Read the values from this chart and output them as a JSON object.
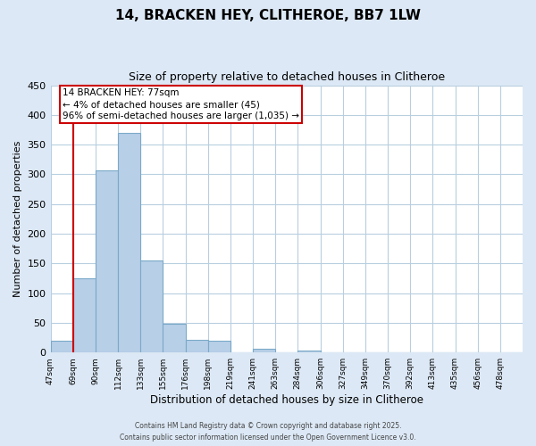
{
  "title": "14, BRACKEN HEY, CLITHEROE, BB7 1LW",
  "subtitle": "Size of property relative to detached houses in Clitheroe",
  "xlabel": "Distribution of detached houses by size in Clitheroe",
  "ylabel": "Number of detached properties",
  "bin_labels": [
    "47sqm",
    "69sqm",
    "90sqm",
    "112sqm",
    "133sqm",
    "155sqm",
    "176sqm",
    "198sqm",
    "219sqm",
    "241sqm",
    "263sqm",
    "284sqm",
    "306sqm",
    "327sqm",
    "349sqm",
    "370sqm",
    "392sqm",
    "413sqm",
    "435sqm",
    "456sqm",
    "478sqm"
  ],
  "bar_values": [
    20,
    125,
    307,
    370,
    155,
    48,
    22,
    20,
    0,
    6,
    0,
    3,
    0,
    0,
    0,
    0,
    0,
    0,
    0,
    0,
    0
  ],
  "bar_color": "#b8cfe8",
  "bar_edge_color": "#7aaac8",
  "ylim": [
    0,
    450
  ],
  "yticks": [
    0,
    50,
    100,
    150,
    200,
    250,
    300,
    350,
    400,
    450
  ],
  "property_line_x": 1.0,
  "property_line_label": "14 BRACKEN HEY: 77sqm",
  "annotation_line1": "← 4% of detached houses are smaller (45)",
  "annotation_line2": "96% of semi-detached houses are larger (1,035) →",
  "box_color": "#ffffff",
  "box_edge_color": "#cc0000",
  "vline_color": "#cc0000",
  "footer1": "Contains HM Land Registry data © Crown copyright and database right 2025.",
  "footer2": "Contains public sector information licensed under the Open Government Licence v3.0.",
  "bg_color": "#dce8f5",
  "plot_bg_color": "#ffffff",
  "grid_color": "#b8cfe0"
}
